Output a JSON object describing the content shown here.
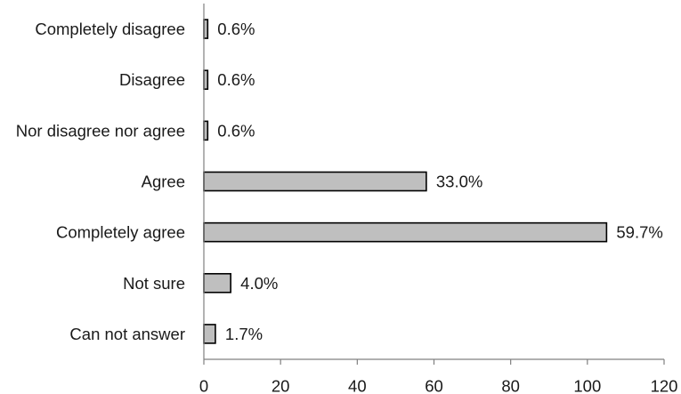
{
  "chart_data": {
    "type": "bar",
    "orientation": "horizontal",
    "categories": [
      "Completely disagree",
      "Disagree",
      "Nor disagree nor agree",
      "Agree",
      "Completely agree",
      "Not sure",
      "Can not answer"
    ],
    "values": [
      1,
      1,
      1,
      58,
      105,
      7,
      3
    ],
    "data_labels": [
      "0.6%",
      "0.6%",
      "0.6%",
      "33.0%",
      "59.7%",
      "4.0%",
      "1.7%"
    ],
    "x_ticks": [
      "0",
      "20",
      "40",
      "60",
      "80",
      "100",
      "120"
    ],
    "xlim": [
      0,
      120
    ],
    "title": "",
    "xlabel": "",
    "ylabel": "",
    "grid": false,
    "legend": "none",
    "colors": {
      "bar_fill": "#bfbfbf",
      "bar_stroke": "#000000",
      "axis": "#808080"
    }
  }
}
